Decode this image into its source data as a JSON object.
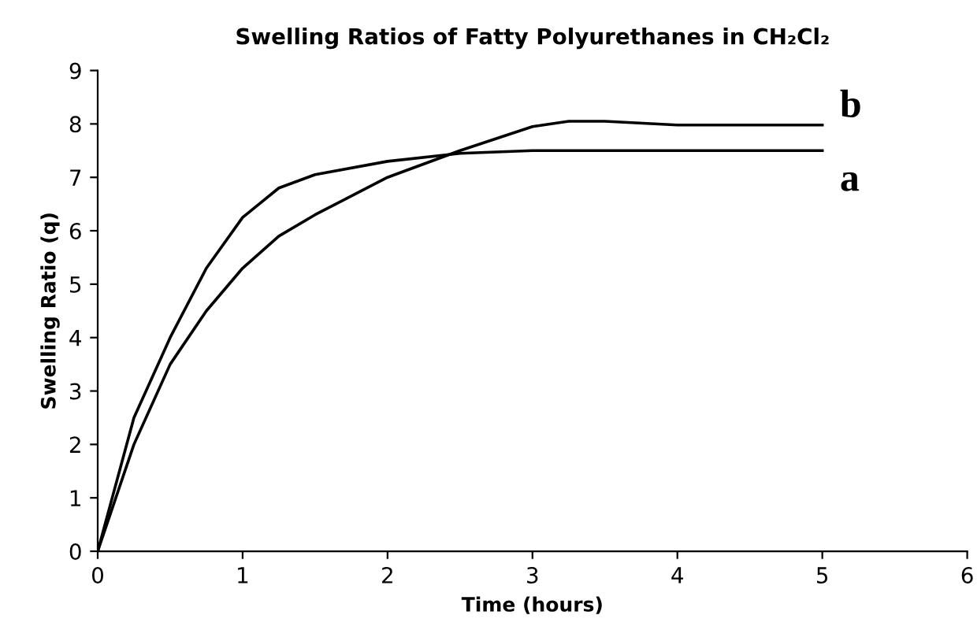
{
  "chart_data": {
    "type": "line",
    "title": "Swelling Ratios of Fatty Polyurethanes in CH₂Cl₂",
    "xlabel": "Time (hours)",
    "ylabel": "Swelling Ratio (q)",
    "series": [
      {
        "color": "#000000",
        "x": [
          0,
          0.25,
          0.5,
          0.75,
          1,
          1.25,
          1.5,
          2,
          2.5,
          3,
          4,
          5
        ],
        "values": [
          0,
          2.5,
          4.0,
          5.3,
          6.25,
          6.8,
          7.05,
          7.3,
          7.45,
          7.5,
          7.5,
          7.5
        ]
      },
      {
        "color": "#000000",
        "x": [
          0,
          0.25,
          0.5,
          0.75,
          1,
          1.25,
          1.5,
          2,
          2.5,
          3,
          3.25,
          3.5,
          4,
          5
        ],
        "values": [
          0,
          2.0,
          3.5,
          4.5,
          5.3,
          5.9,
          6.3,
          7.0,
          7.5,
          7.95,
          8.05,
          8.05,
          7.98,
          7.98
        ]
      }
    ],
    "annotations": [
      {
        "text": "a",
        "x": 5,
        "y": 7.5
      },
      {
        "text": "b",
        "x": 5,
        "y": 7.98
      }
    ],
    "xlim": [
      0,
      6
    ],
    "xticks": [
      0,
      1,
      2,
      3,
      4,
      5,
      6
    ],
    "ylim": [
      0,
      9
    ],
    "yticks": [
      0,
      1,
      2,
      3,
      4,
      5,
      6,
      7,
      8,
      9
    ],
    "grid": false,
    "legend": false,
    "line_style": "solid"
  }
}
